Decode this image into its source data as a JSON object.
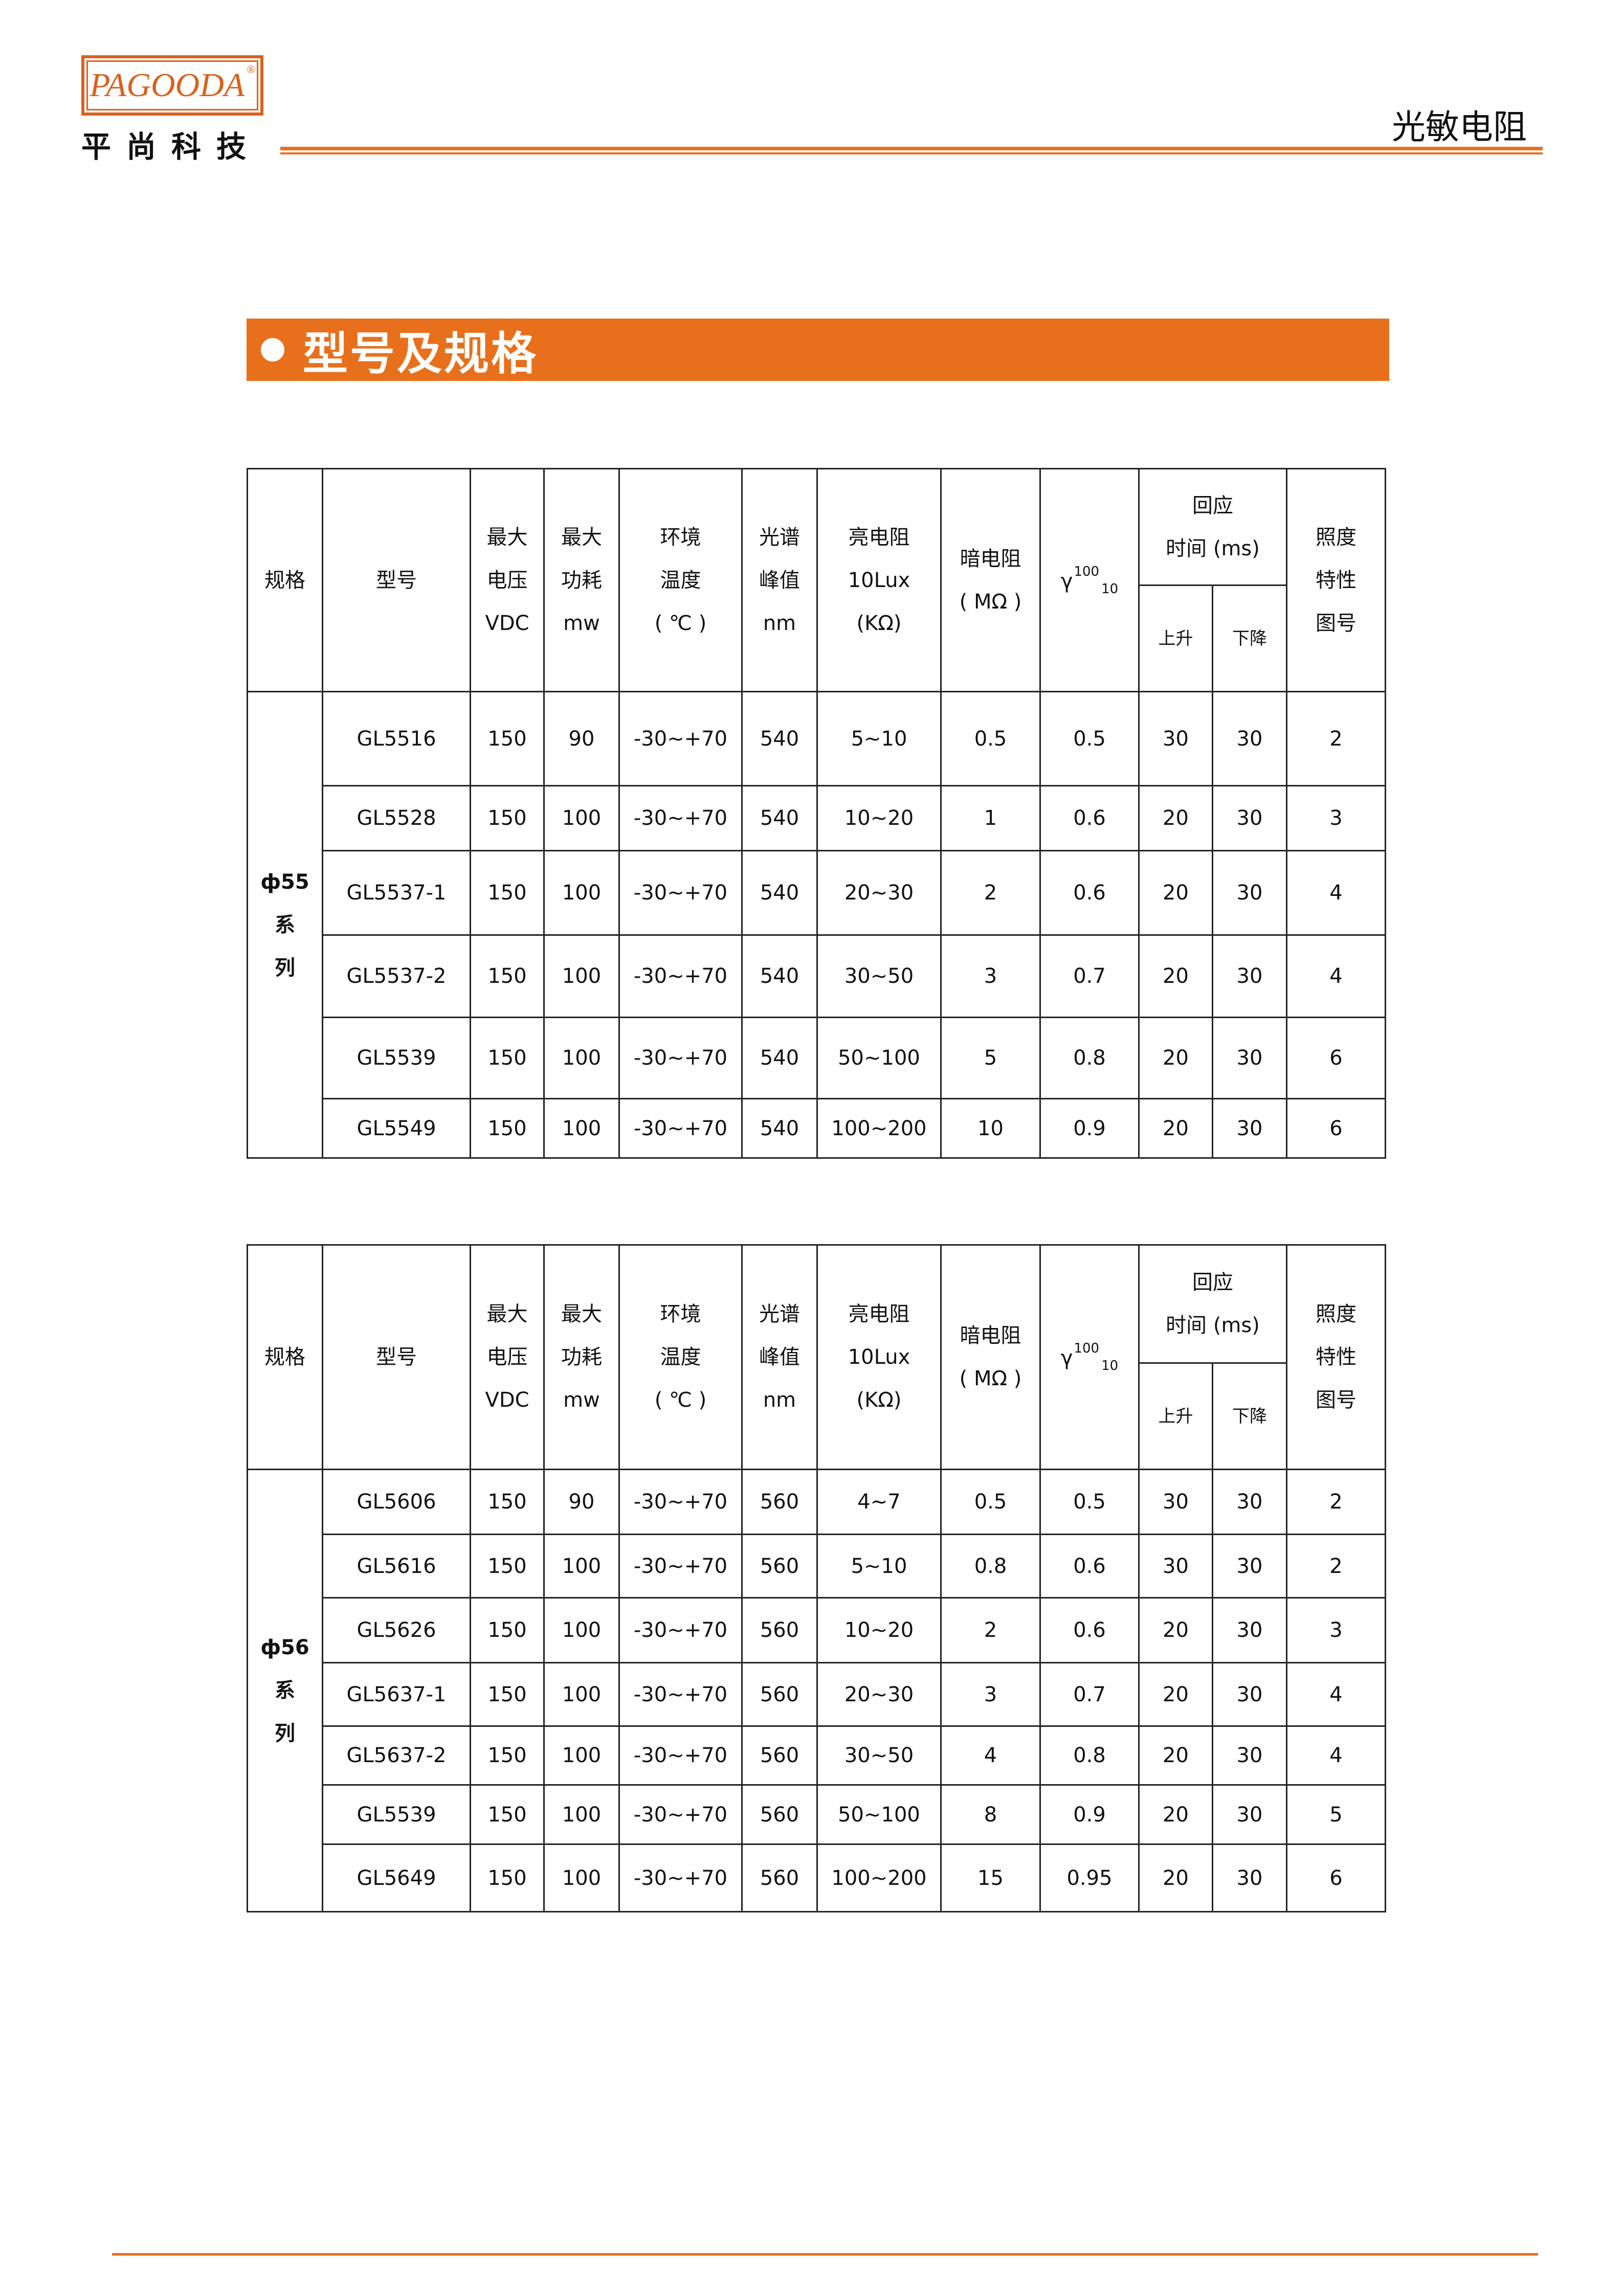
{
  "header": {
    "logo_text": "PAGOODA",
    "logo_cn": "平尚科技",
    "doc_title": "光敏电阻",
    "accent": "#e8701c"
  },
  "section": {
    "title": "型号及规格"
  },
  "table_header": {
    "spec": "规格",
    "model": "型号",
    "voltage": [
      "最大",
      "电压",
      "VDC"
    ],
    "power": [
      "最大",
      "功耗",
      "mw"
    ],
    "temp": [
      "环境",
      "温度",
      "( ℃ )"
    ],
    "peak": [
      "光谱",
      "峰值",
      "nm"
    ],
    "light_res": [
      "亮电阻",
      "10Lux",
      "(KΩ)"
    ],
    "dark_res": [
      "暗电阻",
      "( MΩ )"
    ],
    "gamma": {
      "symbol": "γ",
      "sup": "100",
      "sub": "10"
    },
    "response": [
      "回应",
      "时间 (ms)"
    ],
    "rise": "上升",
    "fall": "下降",
    "curve": [
      "照度",
      "特性",
      "图号"
    ]
  },
  "tables": [
    {
      "series": [
        "ф55",
        "系",
        "列"
      ],
      "rows": [
        [
          "GL5516",
          "150",
          "90",
          "-30~+70",
          "540",
          "5~10",
          "0.5",
          "0.5",
          "30",
          "30",
          "2"
        ],
        [
          "GL5528",
          "150",
          "100",
          "-30~+70",
          "540",
          "10~20",
          "1",
          "0.6",
          "20",
          "30",
          "3"
        ],
        [
          "GL5537-1",
          "150",
          "100",
          "-30~+70",
          "540",
          "20~30",
          "2",
          "0.6",
          "20",
          "30",
          "4"
        ],
        [
          "GL5537-2",
          "150",
          "100",
          "-30~+70",
          "540",
          "30~50",
          "3",
          "0.7",
          "20",
          "30",
          "4"
        ],
        [
          "GL5539",
          "150",
          "100",
          "-30~+70",
          "540",
          "50~100",
          "5",
          "0.8",
          "20",
          "30",
          "6"
        ],
        [
          "GL5549",
          "150",
          "100",
          "-30~+70",
          "540",
          "100~200",
          "10",
          "0.9",
          "20",
          "30",
          "6"
        ]
      ]
    },
    {
      "series": [
        "ф56",
        "系",
        "列"
      ],
      "rows": [
        [
          "GL5606",
          "150",
          "90",
          "-30~+70",
          "560",
          "4~7",
          "0.5",
          "0.5",
          "30",
          "30",
          "2"
        ],
        [
          "GL5616",
          "150",
          "100",
          "-30~+70",
          "560",
          "5~10",
          "0.8",
          "0.6",
          "30",
          "30",
          "2"
        ],
        [
          "GL5626",
          "150",
          "100",
          "-30~+70",
          "560",
          "10~20",
          "2",
          "0.6",
          "20",
          "30",
          "3"
        ],
        [
          "GL5637-1",
          "150",
          "100",
          "-30~+70",
          "560",
          "20~30",
          "3",
          "0.7",
          "20",
          "30",
          "4"
        ],
        [
          "GL5637-2",
          "150",
          "100",
          "-30~+70",
          "560",
          "30~50",
          "4",
          "0.8",
          "20",
          "30",
          "4"
        ],
        [
          "GL5539",
          "150",
          "100",
          "-30~+70",
          "560",
          "50~100",
          "8",
          "0.9",
          "20",
          "30",
          "5"
        ],
        [
          "GL5649",
          "150",
          "100",
          "-30~+70",
          "560",
          "100~200",
          "15",
          "0.95",
          "20",
          "30",
          "6"
        ]
      ]
    }
  ]
}
